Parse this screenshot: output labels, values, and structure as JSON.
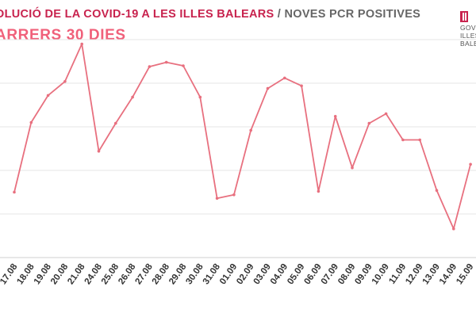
{
  "header": {
    "title_main": "OLUCIÓ DE LA COVID-19 A LES ILLES BALEARS",
    "title_sep": " / ",
    "title_sub": "NOVES PCR POSITIVES",
    "subtitle": "ARRERS 30 DIES"
  },
  "logo": {
    "lines": [
      "GOVE",
      "ILLES",
      "BALE"
    ]
  },
  "colors": {
    "accent": "#c8234e",
    "line": "#e8707f",
    "grid": "#e6e6e6"
  },
  "chart_data": {
    "type": "line",
    "title": "",
    "xlabel": "",
    "ylabel": "",
    "grid": true,
    "legend": "none",
    "ylim": [
      0,
      250
    ],
    "categories": [
      "17.08",
      "18.08",
      "19.08",
      "20.08",
      "21.08",
      "24.08",
      "25.08",
      "26.08",
      "27.08",
      "28.08",
      "29.08",
      "30.08",
      "31.08",
      "01.09",
      "02.09",
      "03.09",
      "04.09",
      "05.09",
      "06.09",
      "07.09",
      "08.09",
      "09.09",
      "10.09",
      "11.09",
      "12.09",
      "13.09",
      "14.09",
      "15.09"
    ],
    "values": [
      75,
      155,
      186,
      202,
      245,
      122,
      154,
      184,
      219,
      224,
      220,
      184,
      68,
      72,
      146,
      194,
      206,
      197,
      76,
      162,
      103,
      154,
      165,
      135,
      135,
      77,
      33,
      107
    ]
  }
}
